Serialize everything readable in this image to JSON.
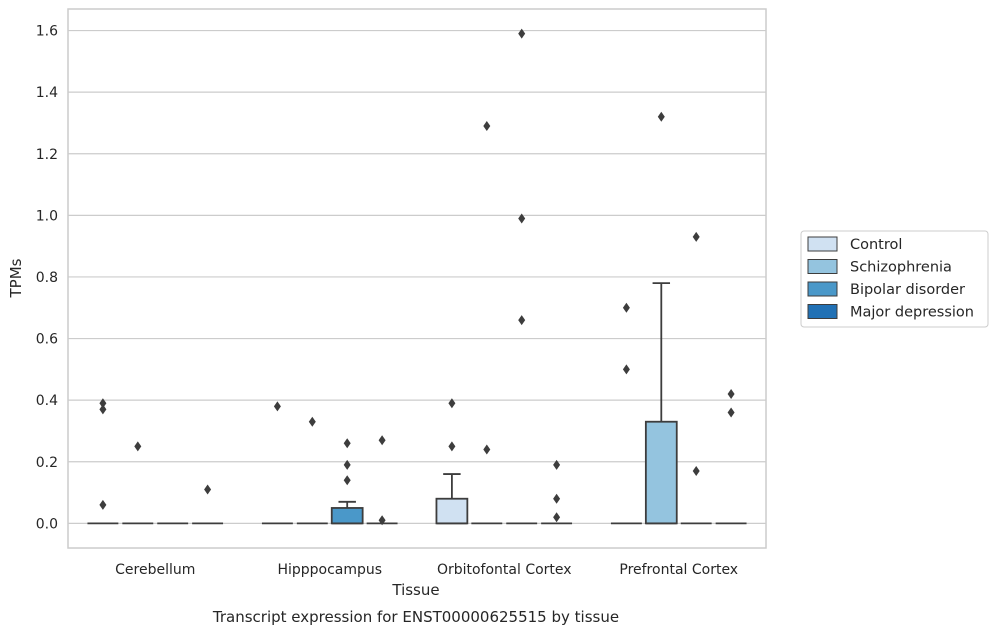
{
  "chart_data": {
    "type": "box",
    "title": "",
    "xlabel": "Tissue",
    "ylabel": "TPMs",
    "caption": "Transcript expression for ENST00000625515 by tissue",
    "ylim": [
      -0.08,
      1.67
    ],
    "yticks": [
      "0.0",
      "0.2",
      "0.4",
      "0.6",
      "0.8",
      "1.0",
      "1.2",
      "1.4",
      "1.6"
    ],
    "grid": "horizontal",
    "legend_position": "right",
    "categories": [
      "Cerebellum",
      "Hipppocampus",
      "Orbitofontal Cortex",
      "Prefrontal Cortex"
    ],
    "series": [
      {
        "name": "Control",
        "color": "#d0e1f2",
        "boxes": [
          {
            "q1": 0,
            "median": 0,
            "q3": 0,
            "whislo": 0,
            "whishi": 0,
            "outliers": [
              0.39,
              0.37,
              0.06
            ]
          },
          {
            "q1": 0,
            "median": 0,
            "q3": 0,
            "whislo": 0,
            "whishi": 0,
            "outliers": [
              0.38
            ]
          },
          {
            "q1": 0,
            "median": 0,
            "q3": 0.08,
            "whislo": 0,
            "whishi": 0.16,
            "outliers": [
              0.39,
              0.25
            ]
          },
          {
            "q1": 0,
            "median": 0,
            "q3": 0,
            "whislo": 0,
            "whishi": 0,
            "outliers": [
              0.7,
              0.5
            ]
          }
        ]
      },
      {
        "name": "Schizophrenia",
        "color": "#94c4df",
        "boxes": [
          {
            "q1": 0,
            "median": 0,
            "q3": 0,
            "whislo": 0,
            "whishi": 0,
            "outliers": [
              0.25
            ]
          },
          {
            "q1": 0,
            "median": 0,
            "q3": 0,
            "whislo": 0,
            "whishi": 0,
            "outliers": [
              0.33
            ]
          },
          {
            "q1": 0,
            "median": 0,
            "q3": 0,
            "whislo": 0,
            "whishi": 0,
            "outliers": [
              1.29,
              0.24
            ]
          },
          {
            "q1": 0,
            "median": 0,
            "q3": 0.33,
            "whislo": 0,
            "whishi": 0.78,
            "outliers": [
              1.32
            ]
          }
        ]
      },
      {
        "name": "Bipolar disorder",
        "color": "#4a98c9",
        "boxes": [
          {
            "q1": 0,
            "median": 0,
            "q3": 0,
            "whislo": 0,
            "whishi": 0,
            "outliers": []
          },
          {
            "q1": 0,
            "median": 0,
            "q3": 0.05,
            "whislo": 0,
            "whishi": 0.07,
            "outliers": [
              0.26,
              0.19,
              0.14
            ]
          },
          {
            "q1": 0,
            "median": 0,
            "q3": 0,
            "whislo": 0,
            "whishi": 0,
            "outliers": [
              1.59,
              0.99,
              0.66
            ]
          },
          {
            "q1": 0,
            "median": 0,
            "q3": 0,
            "whislo": 0,
            "whishi": 0,
            "outliers": [
              0.93,
              0.17
            ]
          }
        ]
      },
      {
        "name": "Major depression",
        "color": "#2171b5",
        "boxes": [
          {
            "q1": 0,
            "median": 0,
            "q3": 0,
            "whislo": 0,
            "whishi": 0,
            "outliers": [
              0.11
            ]
          },
          {
            "q1": 0,
            "median": 0,
            "q3": 0,
            "whislo": 0,
            "whishi": 0,
            "outliers": [
              0.27,
              0.01
            ]
          },
          {
            "q1": 0,
            "median": 0,
            "q3": 0,
            "whislo": 0,
            "whishi": 0,
            "outliers": [
              0.19,
              0.08,
              0.02
            ]
          },
          {
            "q1": 0,
            "median": 0,
            "q3": 0,
            "whislo": 0,
            "whishi": 0,
            "outliers": [
              0.42,
              0.36
            ]
          }
        ]
      }
    ]
  }
}
